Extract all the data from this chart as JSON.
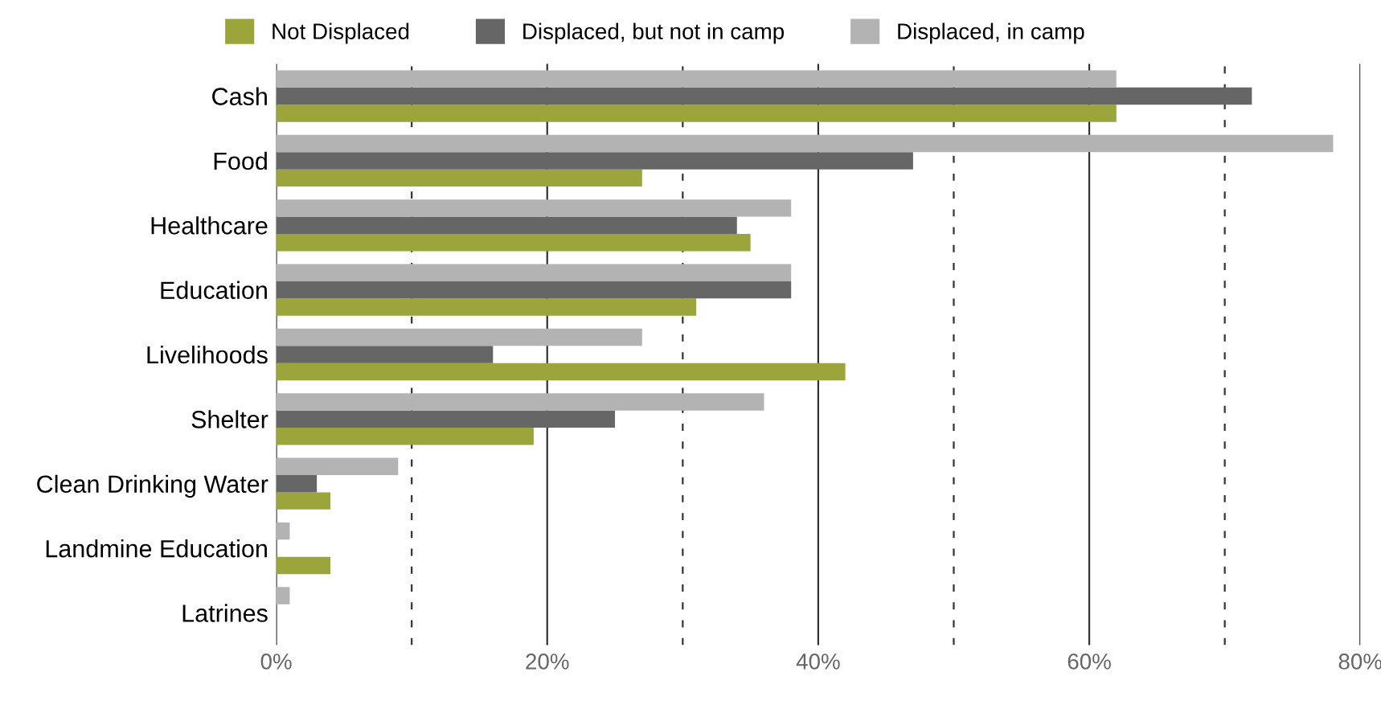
{
  "chart_data": {
    "type": "bar",
    "orientation": "horizontal",
    "categories": [
      "Cash",
      "Food",
      "Healthcare",
      "Education",
      "Livelihoods",
      "Shelter",
      "Clean Drinking Water",
      "Landmine Education",
      "Latrines"
    ],
    "series": [
      {
        "name": "Not Displaced",
        "color": "#9ca43c",
        "values": [
          62,
          27,
          35,
          31,
          42,
          19,
          4,
          4,
          0
        ]
      },
      {
        "name": "Displaced, but not in camp",
        "color": "#666666",
        "values": [
          72,
          47,
          34,
          38,
          16,
          25,
          3,
          0,
          0
        ]
      },
      {
        "name": "Displaced, in camp",
        "color": "#b3b3b3",
        "values": [
          62,
          78,
          38,
          38,
          27,
          36,
          9,
          1,
          1
        ]
      }
    ],
    "xlim": [
      0,
      80
    ],
    "xticks": [
      {
        "value": 0,
        "label": "0%"
      },
      {
        "value": 10,
        "label": null
      },
      {
        "value": 20,
        "label": "20%"
      },
      {
        "value": 30,
        "label": null
      },
      {
        "value": 40,
        "label": "40%"
      },
      {
        "value": 50,
        "label": null
      },
      {
        "value": 60,
        "label": "60%"
      },
      {
        "value": 70,
        "label": null
      },
      {
        "value": 80,
        "label": "80%"
      }
    ],
    "grid": "x",
    "legend": "top"
  }
}
